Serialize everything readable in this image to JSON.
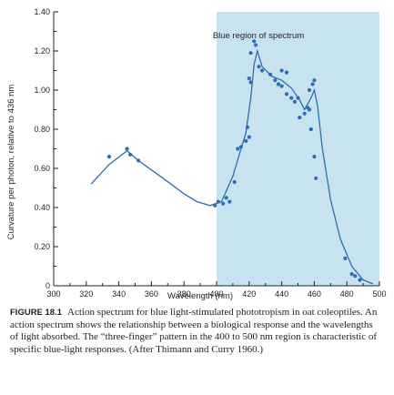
{
  "chart_data": {
    "type": "scatter",
    "title": "",
    "annotation": "Blue region of spectrum",
    "xlabel": "Wavelength (nm)",
    "ylabel": "Curvature per photon, relative to 436 nm",
    "xlim": [
      300,
      500
    ],
    "ylim": [
      0,
      1.4
    ],
    "x_ticks": [
      300,
      320,
      340,
      360,
      380,
      400,
      420,
      440,
      460,
      480,
      500
    ],
    "x_tick_labels": [
      "300",
      "320",
      "340",
      "360",
      "380",
      "400",
      "420",
      "440",
      "460",
      "480",
      "500"
    ],
    "y_ticks": [
      0,
      0.2,
      0.4,
      0.6,
      0.8,
      1.0,
      1.2,
      1.4
    ],
    "y_tick_labels": [
      "0",
      "0.20",
      "0.40",
      "0.60",
      "0.80",
      "1.00",
      "1.20",
      "1.40"
    ],
    "shaded_region": {
      "x_from": 400,
      "x_to": 500,
      "color": "#c8e3f0"
    },
    "colors": {
      "points": "#2e6db4",
      "curve": "#2e6db4",
      "axis": "#231f20"
    },
    "series": [
      {
        "points": [
          [
            334,
            0.66
          ],
          [
            345,
            0.7
          ],
          [
            347,
            0.67
          ],
          [
            352,
            0.64
          ],
          [
            399,
            0.41
          ],
          [
            401,
            0.43
          ],
          [
            404,
            0.42
          ],
          [
            406,
            0.45
          ],
          [
            408,
            0.43
          ],
          [
            411,
            0.53
          ],
          [
            413,
            0.7
          ],
          [
            415,
            0.71
          ],
          [
            418,
            0.74
          ],
          [
            420,
            0.76
          ],
          [
            419,
            0.81
          ],
          [
            421,
            1.04
          ],
          [
            420,
            1.06
          ],
          [
            421,
            1.19
          ],
          [
            424,
            1.23
          ],
          [
            423,
            1.25
          ],
          [
            426,
            1.12
          ],
          [
            428,
            1.1
          ],
          [
            433,
            1.08
          ],
          [
            436,
            1.05
          ],
          [
            438,
            1.03
          ],
          [
            440,
            1.1
          ],
          [
            443,
            1.09
          ],
          [
            440,
            1.02
          ],
          [
            443,
            0.98
          ],
          [
            446,
            0.96
          ],
          [
            448,
            0.94
          ],
          [
            450,
            0.96
          ],
          [
            451,
            0.86
          ],
          [
            454,
            0.88
          ],
          [
            456,
            0.91
          ],
          [
            457,
            0.9
          ],
          [
            457,
            1.0
          ],
          [
            459,
            1.03
          ],
          [
            460,
            1.05
          ],
          [
            458,
            0.8
          ],
          [
            460,
            0.66
          ],
          [
            461,
            0.55
          ],
          [
            479,
            0.14
          ],
          [
            483,
            0.06
          ],
          [
            485,
            0.05
          ],
          [
            488,
            0.03
          ]
        ],
        "curve": [
          [
            323,
            0.52
          ],
          [
            334,
            0.62
          ],
          [
            345,
            0.69
          ],
          [
            352,
            0.64
          ],
          [
            362,
            0.58
          ],
          [
            372,
            0.52
          ],
          [
            380,
            0.47
          ],
          [
            388,
            0.43
          ],
          [
            396,
            0.41
          ],
          [
            403,
            0.43
          ],
          [
            410,
            0.56
          ],
          [
            415,
            0.7
          ],
          [
            418,
            0.78
          ],
          [
            421,
            0.96
          ],
          [
            423,
            1.13
          ],
          [
            425,
            1.2
          ],
          [
            428,
            1.12
          ],
          [
            434,
            1.07
          ],
          [
            440,
            1.05
          ],
          [
            446,
            1.01
          ],
          [
            451,
            0.95
          ],
          [
            454,
            0.9
          ],
          [
            458,
            0.96
          ],
          [
            460,
            1.0
          ],
          [
            462,
            0.92
          ],
          [
            465,
            0.7
          ],
          [
            470,
            0.44
          ],
          [
            476,
            0.24
          ],
          [
            483,
            0.1
          ],
          [
            490,
            0.03
          ],
          [
            496,
            0.01
          ]
        ]
      }
    ]
  },
  "caption": {
    "figure_label": "FIGURE 18.1",
    "text": "Action spectrum for blue light-stimulated phototropism in oat coleoptiles. An action spectrum shows the relationship between a biological response and the wavelengths of light absorbed. The “three-finger” pattern in the 400 to 500 nm region is characteristic of specific blue-light responses. (After Thimann and Curry 1960.)"
  }
}
